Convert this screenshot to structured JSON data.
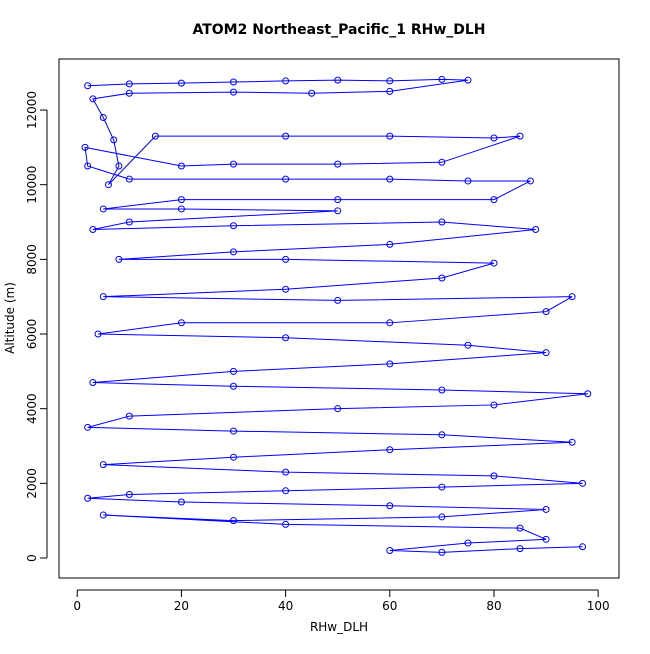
{
  "chart_data": {
    "type": "scatter",
    "title": "ATOM2 Northeast_Pacific_1 RHw_DLH",
    "x_label": "RHw_DLH",
    "y_label": "Altitude (m)",
    "color": "#0000ff",
    "connect": true,
    "xlim": [
      -3.5,
      104
    ],
    "ylim": [
      -536,
      13367
    ],
    "xticks": [
      0,
      20,
      40,
      60,
      80,
      100
    ],
    "yticks": [
      0,
      2000,
      4000,
      6000,
      8000,
      10000,
      12000
    ],
    "x": [
      2,
      10,
      20,
      30,
      40,
      50,
      60,
      70,
      75,
      60,
      45,
      30,
      10,
      3,
      5,
      7,
      8,
      6,
      15,
      40,
      60,
      80,
      85,
      70,
      50,
      30,
      20,
      1.5,
      2,
      10,
      40,
      60,
      75,
      87,
      80,
      50,
      20,
      5,
      20,
      50,
      10,
      3,
      30,
      70,
      88,
      60,
      30,
      8,
      40,
      80,
      70,
      40,
      5,
      50,
      95,
      90,
      60,
      20,
      4,
      40,
      75,
      90,
      60,
      30,
      3,
      30,
      70,
      98,
      80,
      50,
      10,
      2,
      30,
      70,
      95,
      60,
      30,
      5,
      40,
      80,
      97,
      70,
      40,
      10,
      2,
      20,
      60,
      90,
      70,
      30,
      5,
      40,
      85,
      90,
      75,
      60,
      70,
      85,
      97
    ],
    "y": [
      12650,
      12700,
      12720,
      12750,
      12780,
      12800,
      12780,
      12820,
      12800,
      12500,
      12450,
      12480,
      12450,
      12300,
      11800,
      11200,
      10500,
      10000,
      11300,
      11300,
      11300,
      11250,
      11300,
      10600,
      10550,
      10550,
      10500,
      11000,
      10500,
      10150,
      10150,
      10150,
      10100,
      10100,
      9600,
      9600,
      9600,
      9350,
      9350,
      9300,
      9000,
      8800,
      8900,
      9000,
      8800,
      8400,
      8200,
      8000,
      8000,
      7900,
      7500,
      7200,
      7000,
      6900,
      7000,
      6600,
      6300,
      6300,
      6000,
      5900,
      5700,
      5500,
      5200,
      5000,
      4700,
      4600,
      4500,
      4400,
      4100,
      4000,
      3800,
      3500,
      3400,
      3300,
      3100,
      2900,
      2700,
      2500,
      2300,
      2200,
      2000,
      1900,
      1800,
      1700,
      1600,
      1500,
      1400,
      1300,
      1100,
      1000,
      1150,
      900,
      800,
      500,
      400,
      200,
      150,
      250,
      300
    ]
  }
}
